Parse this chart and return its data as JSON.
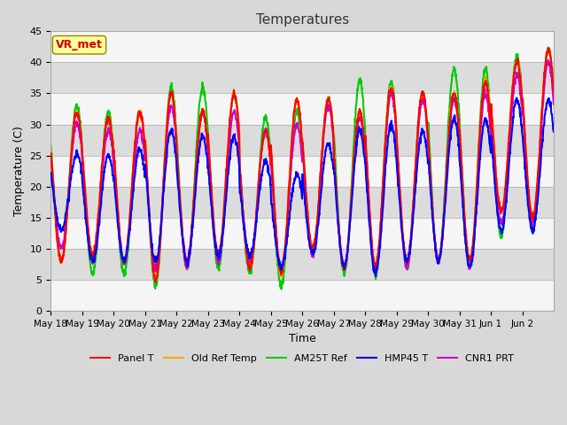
{
  "title": "Temperatures",
  "xlabel": "Time",
  "ylabel": "Temperature (C)",
  "ylim": [
    0,
    45
  ],
  "n_cycles": 16,
  "annotation_text": "VR_met",
  "tick_labels": [
    "May 18",
    "May 19",
    "May 20",
    "May 21",
    "May 22",
    "May 23",
    "May 24",
    "May 25",
    "May 26",
    "May 27",
    "May 28",
    "May 29",
    "May 30",
    "May 31",
    "Jun 1",
    "Jun 2"
  ],
  "series": {
    "panel_t": {
      "color": "#ff0000",
      "label": "Panel T",
      "lw": 1.5
    },
    "old_ref_temp": {
      "color": "#ffa500",
      "label": "Old Ref Temp",
      "lw": 1.5
    },
    "am25t_ref": {
      "color": "#00cc00",
      "label": "AM25T Ref",
      "lw": 1.5
    },
    "hmp45_t": {
      "color": "#0000ff",
      "label": "HMP45 T",
      "lw": 1.5
    },
    "cnr1_prt": {
      "color": "#cc00cc",
      "label": "CNR1 PRT",
      "lw": 1.5
    }
  },
  "mins_red": [
    8,
    9,
    8,
    5,
    8,
    9,
    7,
    6,
    10,
    7,
    7,
    8,
    8,
    8,
    16,
    15
  ],
  "maxs_red": [
    32,
    31,
    32,
    35,
    32,
    35,
    29,
    34,
    34,
    32,
    36,
    35,
    35,
    37,
    40,
    42
  ],
  "mins_orange": [
    8,
    9,
    8,
    5,
    8,
    9,
    7,
    6,
    10,
    7,
    7,
    8,
    8,
    8,
    16,
    15
  ],
  "maxs_orange": [
    32,
    31,
    32,
    35,
    32,
    35,
    29,
    34,
    34,
    32,
    36,
    35,
    35,
    37,
    40,
    42
  ],
  "mins_green": [
    8,
    6,
    6,
    4,
    7,
    7,
    6,
    4,
    9,
    6,
    6,
    7,
    8,
    7,
    12,
    13
  ],
  "maxs_green": [
    33,
    32,
    32,
    36,
    36,
    35,
    31,
    32,
    34,
    37,
    37,
    35,
    39,
    39,
    41,
    42
  ],
  "mins_blue": [
    13,
    8,
    8,
    8,
    8,
    9,
    9,
    7,
    9,
    7,
    6,
    8,
    8,
    7,
    13,
    13
  ],
  "maxs_blue": [
    25,
    25,
    26,
    29,
    28,
    28,
    24,
    22,
    27,
    29,
    30,
    29,
    31,
    31,
    34,
    34
  ],
  "mins_purple": [
    10,
    8,
    8,
    7,
    7,
    8,
    8,
    7,
    9,
    7,
    7,
    7,
    8,
    7,
    14,
    14
  ],
  "maxs_purple": [
    30,
    29,
    29,
    33,
    32,
    32,
    29,
    30,
    33,
    31,
    35,
    34,
    34,
    35,
    38,
    40
  ]
}
